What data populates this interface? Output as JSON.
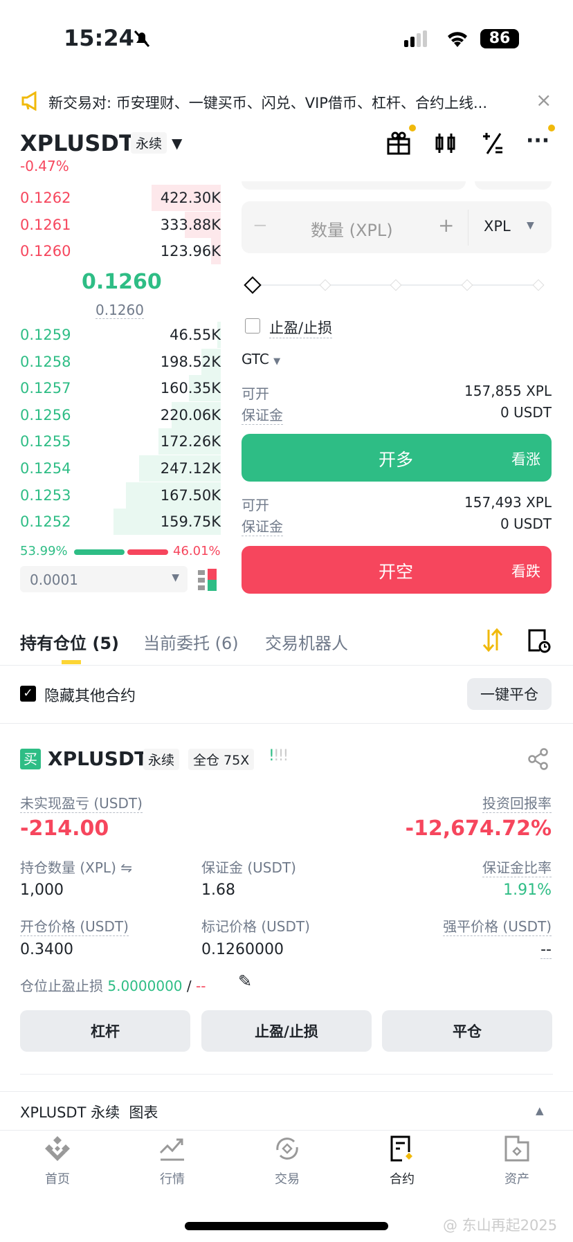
{
  "status": {
    "time": "15:24",
    "battery": "86"
  },
  "notice": {
    "text": "新交易对: 币安理财、一键买币、闪兑、VIP借币、杠杆、合约上线..."
  },
  "header": {
    "symbol": "XPLUSDT",
    "type": "永续",
    "change": "-0.47%"
  },
  "orderbook": {
    "asks": [
      {
        "price": "0.1262",
        "qty": "422.30K"
      },
      {
        "price": "0.1261",
        "qty": "333.88K"
      },
      {
        "price": "0.1260",
        "qty": "123.96K"
      }
    ],
    "mid_price": "0.1260",
    "mark_price": "0.1260",
    "bids": [
      {
        "price": "0.1259",
        "qty": "46.55K"
      },
      {
        "price": "0.1258",
        "qty": "198.52K"
      },
      {
        "price": "0.1257",
        "qty": "160.35K"
      },
      {
        "price": "0.1256",
        "qty": "220.06K"
      },
      {
        "price": "0.1255",
        "qty": "172.26K"
      },
      {
        "price": "0.1254",
        "qty": "247.12K"
      },
      {
        "price": "0.1253",
        "qty": "167.50K"
      },
      {
        "price": "0.1252",
        "qty": "159.75K"
      }
    ],
    "buy_ratio": "53.99%",
    "sell_ratio": "46.01%",
    "buy_fraction": 0.5399,
    "precision": "0.0001"
  },
  "order": {
    "qty_placeholder": "数量 (XPL)",
    "unit": "XPL",
    "tpsl_label": "止盈/止损",
    "tif": "GTC",
    "long": {
      "avail_label": "可开",
      "avail": "157,855 XPL",
      "margin_label": "保证金",
      "margin": "0 USDT",
      "button": "开多",
      "hint": "看涨"
    },
    "short": {
      "avail_label": "可开",
      "avail": "157,493 XPL",
      "margin_label": "保证金",
      "margin": "0 USDT",
      "button": "开空",
      "hint": "看跌"
    }
  },
  "tabs": [
    {
      "label": "持有仓位 (5)"
    },
    {
      "label": "当前委托 (6)"
    },
    {
      "label": "交易机器人"
    }
  ],
  "filter": {
    "hide_other": "隐藏其他合约",
    "close_all": "一键平仓"
  },
  "position": {
    "side": "买",
    "symbol": "XPLUSDT",
    "type": "永续",
    "margin_mode": "全仓 75X",
    "pnl_label": "未实现盈亏 (USDT)",
    "pnl": "-214.00",
    "roe_label": "投资回报率",
    "roe": "-12,674.72%",
    "size_label": "持仓数量 (XPL)",
    "size": "1,000",
    "margin_label": "保证金 (USDT)",
    "margin": "1.68",
    "ratio_label": "保证金比率",
    "ratio": "1.91%",
    "entry_label": "开仓价格 (USDT)",
    "entry": "0.3400",
    "mark_label": "标记价格 (USDT)",
    "mark": "0.1260000",
    "liq_label": "强平价格 (USDT)",
    "liq": "--",
    "tpsl_label": "仓位止盈止损",
    "tp": "5.0000000",
    "sep": "/",
    "sl": "--",
    "buttons": [
      "杠杆",
      "止盈/止损",
      "平仓"
    ]
  },
  "chart_bar": {
    "label": "XPLUSDT 永续  图表"
  },
  "nav": [
    {
      "label": "首页"
    },
    {
      "label": "行情"
    },
    {
      "label": "交易"
    },
    {
      "label": "合约"
    },
    {
      "label": "资产"
    }
  ],
  "watermark": "@ 东山再起2025",
  "colors": {
    "green": "#2ebd85",
    "red": "#f6465d",
    "yellow": "#f0b90b"
  }
}
